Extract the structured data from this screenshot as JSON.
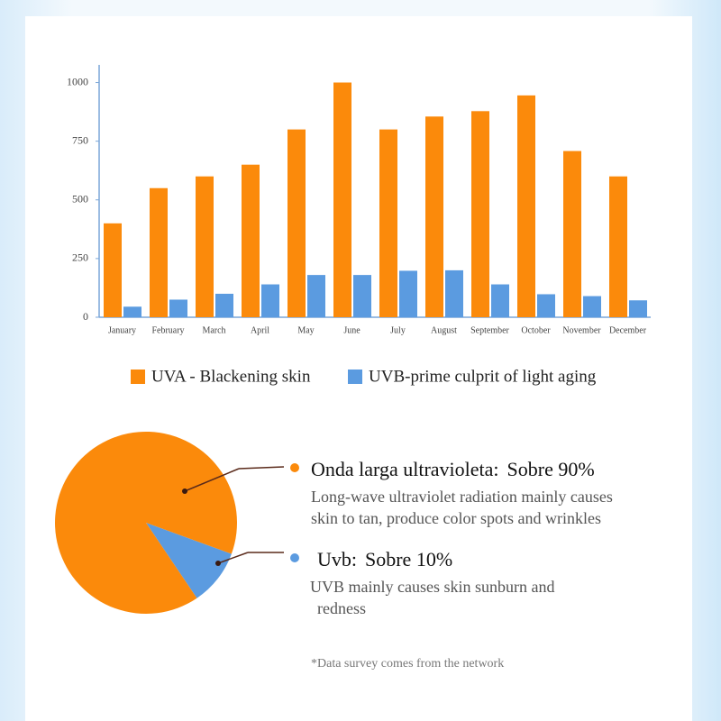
{
  "chart_data": [
    {
      "type": "bar",
      "categories": [
        "January",
        "February",
        "March",
        "April",
        "May",
        "June",
        "July",
        "August",
        "September",
        "October",
        "November",
        "December"
      ],
      "series": [
        {
          "name": "UVA - Blackening skin",
          "color": "#fb8a0b",
          "values": [
            400,
            550,
            600,
            650,
            800,
            1000,
            800,
            855,
            878,
            945,
            708,
            600
          ]
        },
        {
          "name": "UVB-prime culprit of light aging",
          "color": "#5b9be0",
          "values": [
            45,
            75,
            100,
            140,
            180,
            180,
            198,
            200,
            140,
            98,
            90,
            72
          ]
        }
      ],
      "ylim": [
        0,
        1075
      ],
      "yticks": [
        0,
        250,
        500,
        750,
        1000
      ]
    },
    {
      "type": "pie",
      "categories": [
        "Onda larga ultravioleta:",
        "Uvb:"
      ],
      "values": [
        90,
        10
      ],
      "value_labels": [
        "Sobre 90%",
        "Sobre 10%"
      ],
      "colors": [
        "#fb8a0b",
        "#5b9be0"
      ],
      "descriptions": [
        [
          "Long-wave ultraviolet radiation mainly causes",
          "skin to tan, produce color spots and wrinkles"
        ],
        [
          "UVB mainly causes skin sunburn and",
          "redness"
        ]
      ],
      "footnote": "*Data survey comes from the network"
    }
  ]
}
